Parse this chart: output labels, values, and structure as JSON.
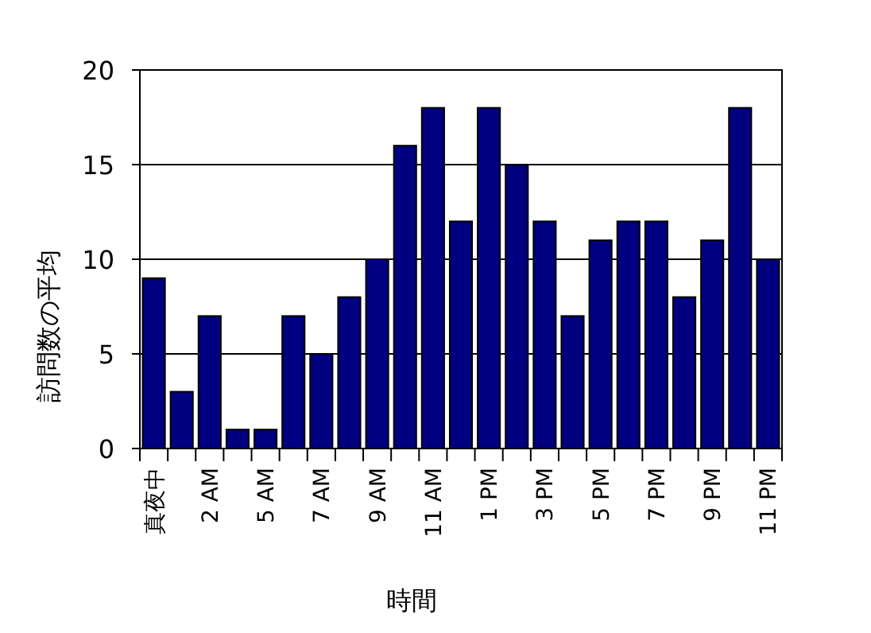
{
  "chart_data": {
    "type": "bar",
    "xlabel": "時間",
    "ylabel": "訪問数の平均",
    "categories": [
      "真夜中",
      null,
      "2 AM",
      null,
      "5 AM",
      null,
      "7 AM",
      null,
      "9 AM",
      null,
      "11 AM",
      null,
      "1 PM",
      null,
      "3 PM",
      null,
      "5 PM",
      null,
      "7 PM",
      null,
      "9 PM",
      null,
      "11 PM"
    ],
    "values": [
      9,
      3,
      7,
      1,
      1,
      7,
      5,
      8,
      10,
      16,
      18,
      12,
      18,
      15,
      12,
      7,
      11,
      12,
      12,
      8,
      11,
      18,
      10
    ],
    "color": "#000080",
    "ylim": [
      0,
      20
    ],
    "yticks": [
      0,
      5,
      10,
      15,
      20
    ],
    "grid": "y"
  }
}
